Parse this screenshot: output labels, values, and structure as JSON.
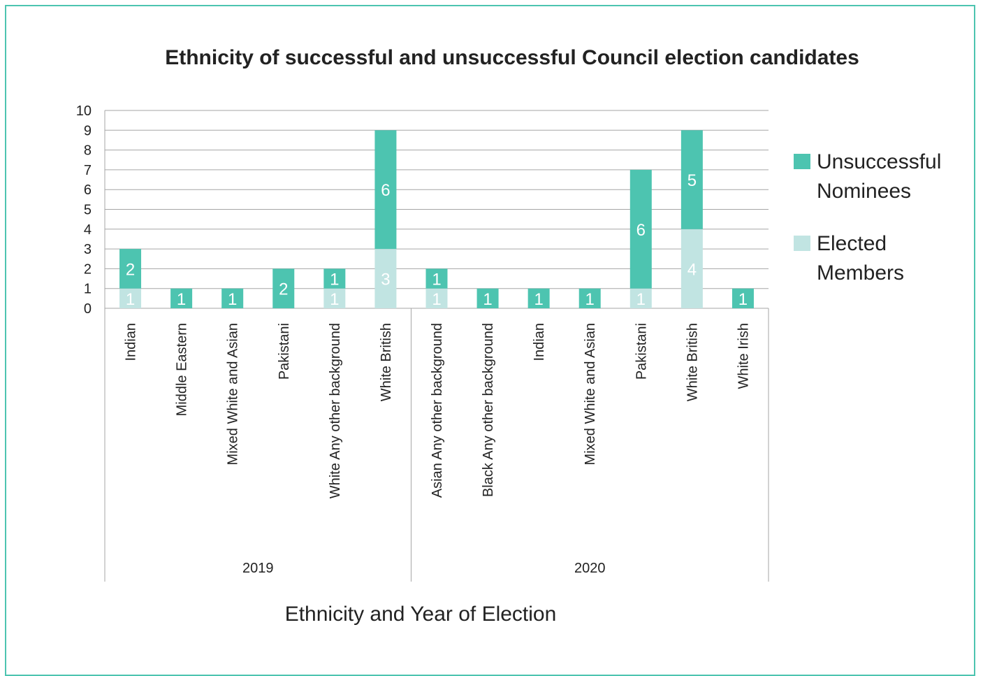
{
  "colors": {
    "unsuccessful": "#4dc4b0",
    "elected": "#c1e4e2",
    "grid": "#a6a6a6",
    "frame": "#4dc4b0"
  },
  "chart_data": {
    "type": "bar",
    "stacked": true,
    "title": "Ethnicity of successful and unsuccessful Council election candidates",
    "xlabel": "Ethnicity and Year of Election",
    "ylabel": "",
    "ylim": [
      0,
      10
    ],
    "yticks": [
      0,
      1,
      2,
      3,
      4,
      5,
      6,
      7,
      8,
      9,
      10
    ],
    "grid": true,
    "legend_position": "right",
    "groups": [
      {
        "label": "2019",
        "categories": [
          "Indian",
          "Middle Eastern",
          "Mixed White and Asian",
          "Pakistani",
          "White Any other background",
          "White British"
        ]
      },
      {
        "label": "2020",
        "categories": [
          "Asian Any other background",
          "Black Any other background",
          "Indian",
          "Mixed White and Asian",
          "Pakistani",
          "White British",
          "White Irish"
        ]
      }
    ],
    "categories": [
      "Indian",
      "Middle Eastern",
      "Mixed White and Asian",
      "Pakistani",
      "White Any other background",
      "White British",
      "Asian Any other background",
      "Black Any other background",
      "Indian",
      "Mixed White and Asian",
      "Pakistani",
      "White British",
      "White Irish"
    ],
    "series": [
      {
        "name": "Elected Members",
        "values": [
          1,
          0,
          0,
          0,
          1,
          3,
          1,
          0,
          0,
          0,
          1,
          4,
          0
        ]
      },
      {
        "name": "Unsuccessful Nominees",
        "values": [
          2,
          1,
          1,
          2,
          1,
          6,
          1,
          1,
          1,
          1,
          6,
          5,
          1
        ]
      }
    ],
    "legend": [
      {
        "series": "Unsuccessful Nominees",
        "lines": [
          "Unsuccessful",
          "Nominees"
        ]
      },
      {
        "series": "Elected Members",
        "lines": [
          "Elected",
          "Members"
        ]
      }
    ]
  }
}
